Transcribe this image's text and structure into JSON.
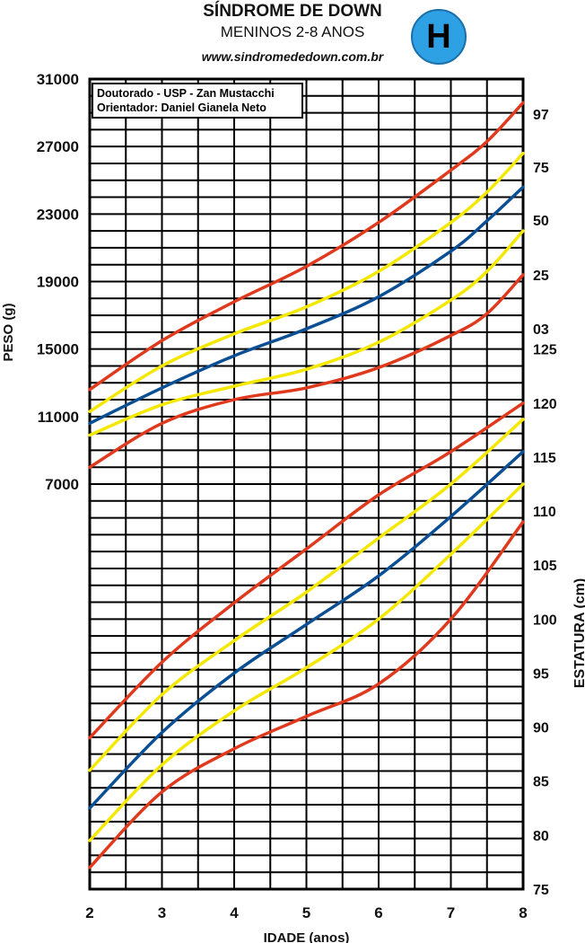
{
  "header": {
    "title": "SÍNDROME DE DOWN",
    "subtitle": "MENINOS 2-8 ANOS",
    "website": "www.sindromededown.com.br",
    "badge": "H",
    "badge_color": "#2ea0e4"
  },
  "credit": {
    "line1": "Doutorado - USP - Zan Mustacchi",
    "line2": "Orientador: Daniel Gianela Neto"
  },
  "chart_data": {
    "type": "line",
    "xlabel": "IDADE (anos)",
    "ylabel_left": "PESO (g)",
    "ylabel_right": "ESTATURA (cm)",
    "grid": true,
    "x_ticks": [
      2,
      3,
      4,
      5,
      6,
      7,
      8
    ],
    "weight_ticks": [
      7000,
      11000,
      15000,
      19000,
      23000,
      27000,
      31000
    ],
    "weight_range": [
      7000,
      31000
    ],
    "height_ticks": [
      75,
      80,
      85,
      90,
      95,
      100,
      105,
      110,
      115,
      120,
      125
    ],
    "height_range": [
      75,
      125
    ],
    "percentile_labels": [
      "97",
      "75",
      "50",
      "25",
      "03"
    ],
    "colors": {
      "p97": "#e03a1e",
      "p75": "#f5e800",
      "p50": "#0a4f94",
      "p25": "#f5e800",
      "p03": "#e03a1e"
    },
    "weight_series": [
      {
        "name": "97",
        "x": [
          2,
          3,
          4,
          5,
          6,
          7,
          7.5,
          8
        ],
        "values": [
          12600,
          15500,
          17800,
          19900,
          22500,
          25600,
          27300,
          29600
        ]
      },
      {
        "name": "75",
        "x": [
          2,
          3,
          4,
          5,
          6,
          7,
          7.5,
          8
        ],
        "values": [
          11300,
          14000,
          15900,
          17500,
          19600,
          22500,
          24300,
          26600
        ]
      },
      {
        "name": "50",
        "x": [
          2,
          3,
          4,
          5,
          6,
          7,
          7.5,
          8
        ],
        "values": [
          10600,
          12700,
          14600,
          16200,
          18100,
          20800,
          22600,
          24600
        ]
      },
      {
        "name": "25",
        "x": [
          2,
          3,
          4,
          5,
          6,
          7,
          7.5,
          8
        ],
        "values": [
          9900,
          11700,
          12800,
          13800,
          15400,
          17900,
          19600,
          22000
        ]
      },
      {
        "name": "03",
        "x": [
          2,
          3,
          4,
          5,
          6,
          7,
          7.5,
          8
        ],
        "values": [
          8000,
          10600,
          12000,
          12700,
          13900,
          15800,
          17100,
          19400
        ]
      }
    ],
    "height_series": [
      {
        "name": "97",
        "x": [
          2,
          3,
          4,
          5,
          6,
          7,
          8
        ],
        "values": [
          89,
          96,
          101.5,
          106.5,
          111.5,
          115.5,
          120
        ]
      },
      {
        "name": "75",
        "x": [
          2,
          3,
          4,
          5,
          6,
          7,
          8
        ],
        "values": [
          86,
          93,
          98,
          102.5,
          107.5,
          112.5,
          118.5
        ]
      },
      {
        "name": "50",
        "x": [
          2,
          3,
          4,
          5,
          6,
          7,
          8
        ],
        "values": [
          82.5,
          89.5,
          95,
          99.5,
          104,
          109.5,
          115.5
        ]
      },
      {
        "name": "25",
        "x": [
          2,
          3,
          4,
          5,
          6,
          7,
          8
        ],
        "values": [
          79.5,
          86.5,
          91.5,
          95.5,
          100,
          106,
          112.5
        ]
      },
      {
        "name": "03",
        "x": [
          2,
          3,
          4,
          5,
          6,
          7,
          8
        ],
        "values": [
          77,
          84,
          88,
          91,
          94,
          100,
          109
        ]
      }
    ]
  }
}
